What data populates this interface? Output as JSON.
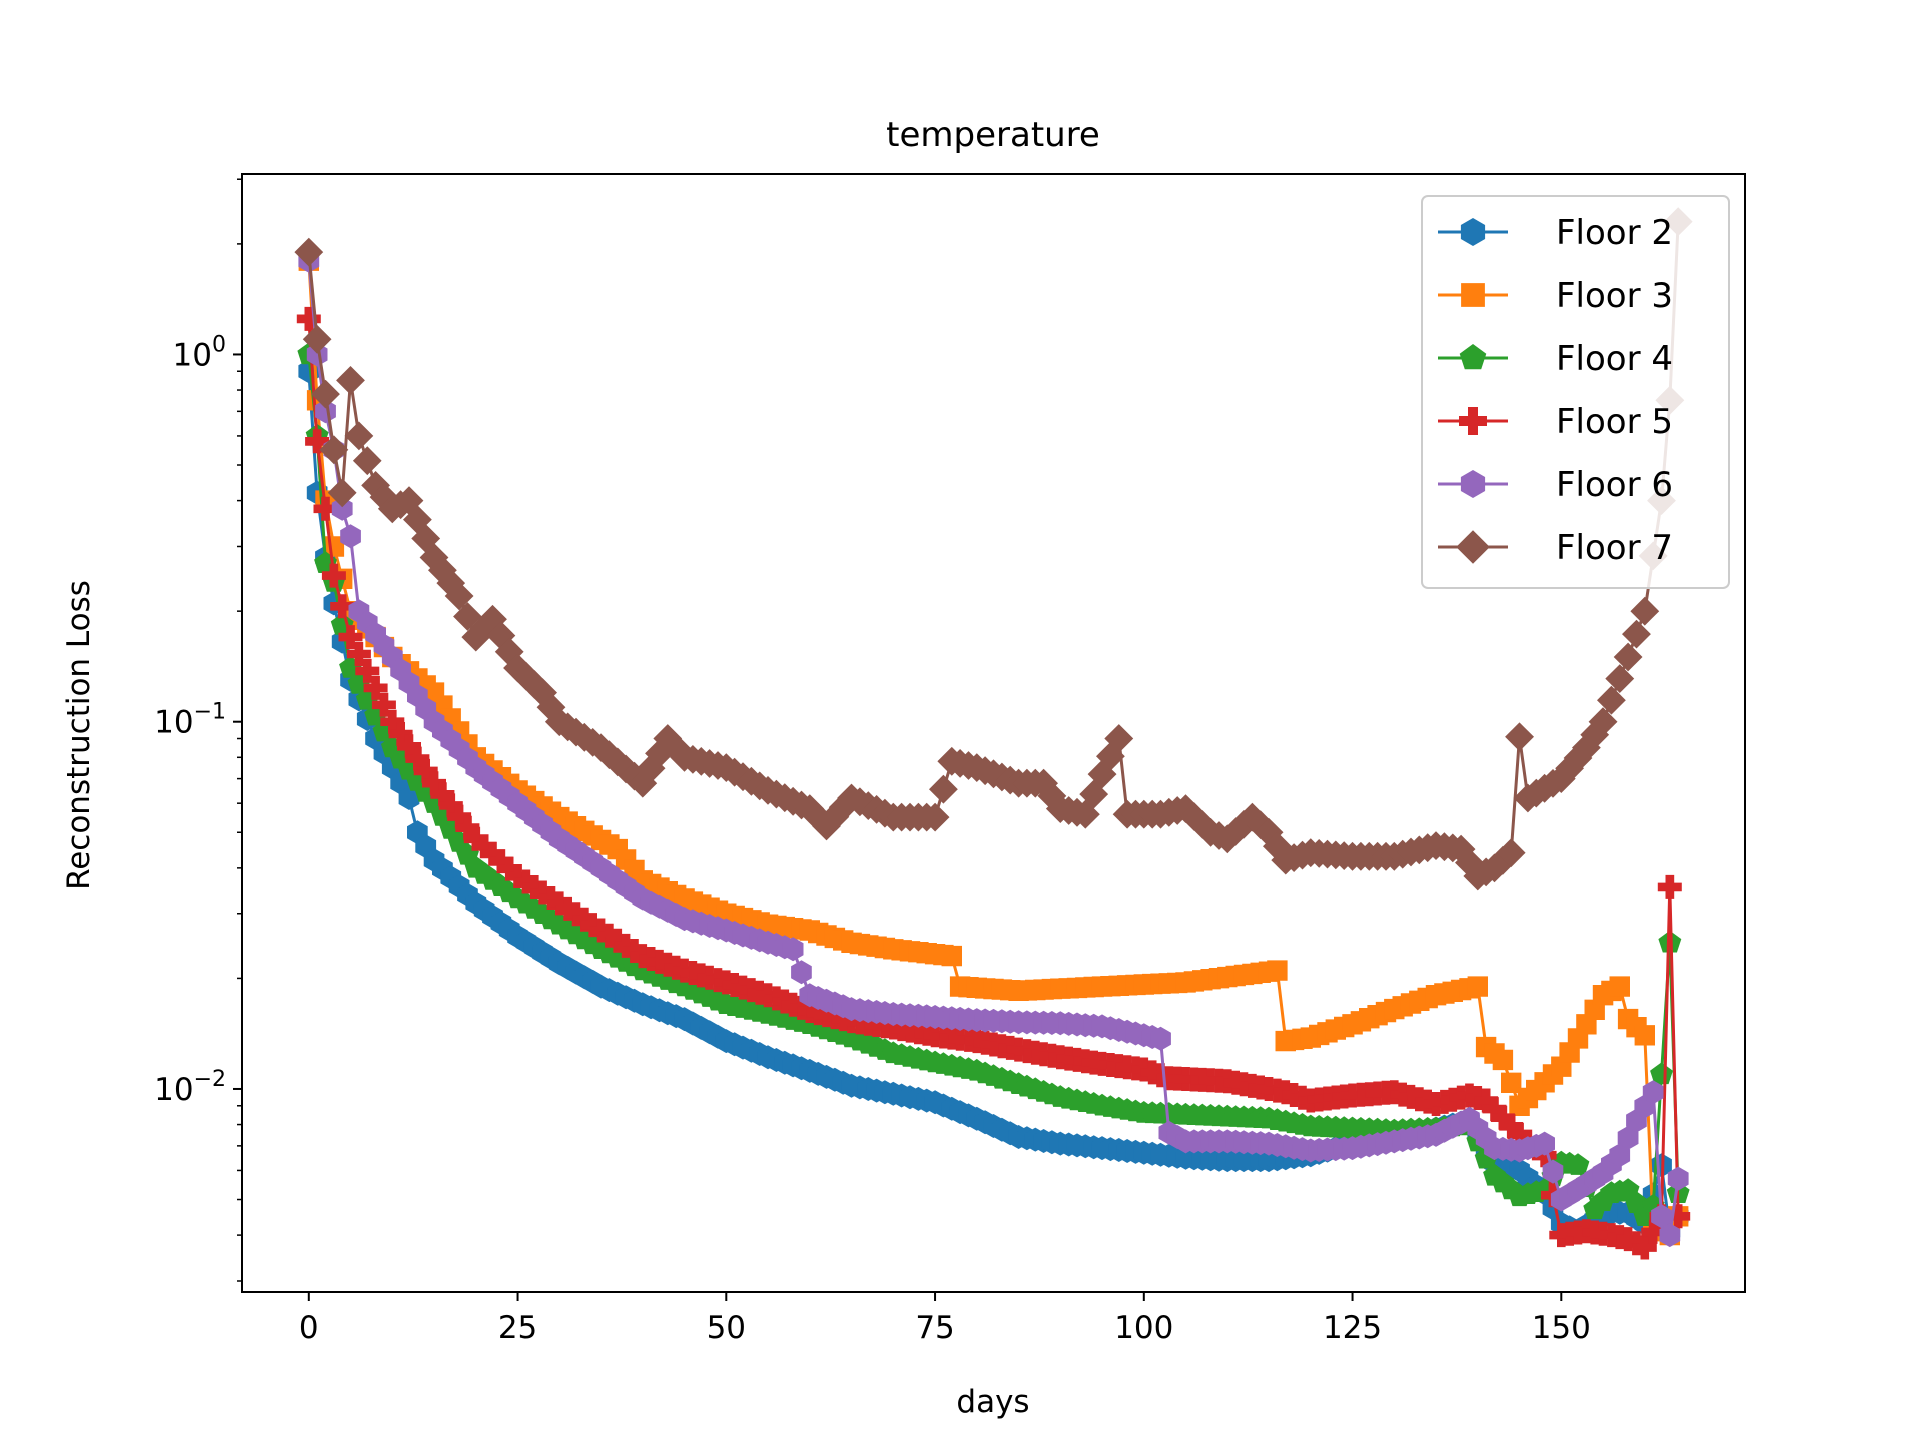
{
  "chart_data": {
    "type": "line",
    "title": "temperature",
    "xlabel": "days",
    "ylabel": "Reconstruction Loss",
    "xlim": [
      -8,
      172
    ],
    "ylim": [
      0.0028,
      3.1
    ],
    "yscale": "log",
    "xticks": [
      0,
      25,
      50,
      75,
      100,
      125,
      150
    ],
    "xtick_labels": [
      "0",
      "25",
      "50",
      "75",
      "100",
      "125",
      "150"
    ],
    "yticks": [
      0.01,
      0.1,
      1
    ],
    "ytick_labels": [
      {
        "base": "10",
        "exp": "−2"
      },
      {
        "base": "10",
        "exp": "−1"
      },
      {
        "base": "10",
        "exp": "0"
      }
    ],
    "grid": false,
    "legend_position": "top-right",
    "series": [
      {
        "name": "Floor 2",
        "color": "#1f77b4",
        "marker": "hexagon",
        "keypoints": [
          [
            0,
            0.9
          ],
          [
            1,
            0.42
          ],
          [
            2,
            0.28
          ],
          [
            3,
            0.21
          ],
          [
            5,
            0.13
          ],
          [
            8,
            0.09
          ],
          [
            10,
            0.075
          ],
          [
            12,
            0.062
          ],
          [
            13,
            0.05
          ],
          [
            15,
            0.042
          ],
          [
            20,
            0.032
          ],
          [
            25,
            0.026
          ],
          [
            30,
            0.022
          ],
          [
            35,
            0.019
          ],
          [
            40,
            0.017
          ],
          [
            45,
            0.0155
          ],
          [
            50,
            0.0135
          ],
          [
            55,
            0.0122
          ],
          [
            60,
            0.0112
          ],
          [
            65,
            0.0102
          ],
          [
            70,
            0.0097
          ],
          [
            75,
            0.0092
          ],
          [
            80,
            0.0083
          ],
          [
            85,
            0.0074
          ],
          [
            90,
            0.0071
          ],
          [
            95,
            0.0069
          ],
          [
            100,
            0.0067
          ],
          [
            105,
            0.0065
          ],
          [
            110,
            0.0064
          ],
          [
            115,
            0.0064
          ],
          [
            120,
            0.0066
          ],
          [
            125,
            0.0071
          ],
          [
            130,
            0.0074
          ],
          [
            135,
            0.0078
          ],
          [
            139,
            0.0082
          ],
          [
            142,
            0.0063
          ],
          [
            145,
            0.006
          ],
          [
            148,
            0.0052
          ],
          [
            150,
            0.0043
          ],
          [
            152,
            0.0041
          ],
          [
            154,
            0.0044
          ],
          [
            156,
            0.0046
          ],
          [
            158,
            0.0046
          ],
          [
            160,
            0.0043
          ],
          [
            162,
            0.0062
          ],
          [
            163,
            0.0041
          ],
          [
            164,
            0.0045
          ]
        ]
      },
      {
        "name": "Floor 3",
        "color": "#ff7f0e",
        "marker": "square",
        "keypoints": [
          [
            0,
            1.8
          ],
          [
            1,
            0.75
          ],
          [
            2,
            0.4
          ],
          [
            3,
            0.3
          ],
          [
            5,
            0.2
          ],
          [
            8,
            0.17
          ],
          [
            10,
            0.15
          ],
          [
            15,
            0.12
          ],
          [
            20,
            0.08
          ],
          [
            25,
            0.065
          ],
          [
            30,
            0.055
          ],
          [
            37,
            0.045
          ],
          [
            40,
            0.037
          ],
          [
            45,
            0.033
          ],
          [
            50,
            0.03
          ],
          [
            55,
            0.028
          ],
          [
            60,
            0.027
          ],
          [
            65,
            0.025
          ],
          [
            70,
            0.024
          ],
          [
            77,
            0.023
          ],
          [
            78,
            0.019
          ],
          [
            85,
            0.0185
          ],
          [
            95,
            0.019
          ],
          [
            105,
            0.0195
          ],
          [
            116,
            0.021
          ],
          [
            117,
            0.0135
          ],
          [
            120,
            0.0138
          ],
          [
            125,
            0.015
          ],
          [
            130,
            0.0165
          ],
          [
            135,
            0.018
          ],
          [
            140,
            0.019
          ],
          [
            141,
            0.013
          ],
          [
            143,
            0.012
          ],
          [
            145,
            0.009
          ],
          [
            150,
            0.0115
          ],
          [
            153,
            0.015
          ],
          [
            155,
            0.018
          ],
          [
            157,
            0.019
          ],
          [
            158,
            0.0155
          ],
          [
            160,
            0.014
          ],
          [
            161,
            0.0042
          ],
          [
            163,
            0.004
          ],
          [
            164,
            0.0045
          ]
        ]
      },
      {
        "name": "Floor 4",
        "color": "#2ca02c",
        "marker": "pentagon",
        "keypoints": [
          [
            0,
            1.0
          ],
          [
            1,
            0.6
          ],
          [
            2,
            0.27
          ],
          [
            3,
            0.24
          ],
          [
            5,
            0.14
          ],
          [
            10,
            0.085
          ],
          [
            15,
            0.06
          ],
          [
            20,
            0.04
          ],
          [
            25,
            0.033
          ],
          [
            30,
            0.028
          ],
          [
            35,
            0.024
          ],
          [
            40,
            0.021
          ],
          [
            45,
            0.019
          ],
          [
            50,
            0.017
          ],
          [
            55,
            0.016
          ],
          [
            60,
            0.015
          ],
          [
            65,
            0.0138
          ],
          [
            70,
            0.0125
          ],
          [
            75,
            0.0118
          ],
          [
            80,
            0.0112
          ],
          [
            85,
            0.0103
          ],
          [
            90,
            0.0095
          ],
          [
            95,
            0.009
          ],
          [
            100,
            0.0086
          ],
          [
            105,
            0.0085
          ],
          [
            110,
            0.0084
          ],
          [
            115,
            0.0083
          ],
          [
            120,
            0.0079
          ],
          [
            125,
            0.0078
          ],
          [
            130,
            0.0077
          ],
          [
            135,
            0.0078
          ],
          [
            139,
            0.008
          ],
          [
            142,
            0.0058
          ],
          [
            145,
            0.0051
          ],
          [
            148,
            0.0053
          ],
          [
            150,
            0.0063
          ],
          [
            152,
            0.0062
          ],
          [
            154,
            0.0047
          ],
          [
            156,
            0.0052
          ],
          [
            158,
            0.0053
          ],
          [
            160,
            0.0045
          ],
          [
            161,
            0.0048
          ],
          [
            163,
            0.025
          ],
          [
            164,
            0.0052
          ]
        ]
      },
      {
        "name": "Floor 5",
        "color": "#d62728",
        "marker": "plus",
        "keypoints": [
          [
            0,
            1.25
          ],
          [
            1,
            0.58
          ],
          [
            2,
            0.38
          ],
          [
            3,
            0.25
          ],
          [
            5,
            0.17
          ],
          [
            10,
            0.1
          ],
          [
            15,
            0.068
          ],
          [
            20,
            0.048
          ],
          [
            25,
            0.038
          ],
          [
            30,
            0.032
          ],
          [
            35,
            0.027
          ],
          [
            40,
            0.023
          ],
          [
            45,
            0.021
          ],
          [
            50,
            0.0195
          ],
          [
            55,
            0.018
          ],
          [
            60,
            0.0163
          ],
          [
            65,
            0.0153
          ],
          [
            70,
            0.0147
          ],
          [
            75,
            0.014
          ],
          [
            80,
            0.0135
          ],
          [
            85,
            0.0128
          ],
          [
            90,
            0.0122
          ],
          [
            95,
            0.0117
          ],
          [
            100,
            0.0113
          ],
          [
            103,
            0.0107
          ],
          [
            110,
            0.0105
          ],
          [
            117,
            0.0098
          ],
          [
            120,
            0.0093
          ],
          [
            125,
            0.0096
          ],
          [
            130,
            0.0098
          ],
          [
            135,
            0.0091
          ],
          [
            139,
            0.0096
          ],
          [
            141,
            0.0093
          ],
          [
            145,
            0.0075
          ],
          [
            148,
            0.0066
          ],
          [
            150,
            0.004
          ],
          [
            153,
            0.0041
          ],
          [
            156,
            0.004
          ],
          [
            158,
            0.0039
          ],
          [
            160,
            0.0037
          ],
          [
            162,
            0.0045
          ],
          [
            163,
            0.0355
          ],
          [
            164,
            0.0045
          ]
        ]
      },
      {
        "name": "Floor 6",
        "color": "#9467bd",
        "marker": "hexagon",
        "keypoints": [
          [
            0,
            1.8
          ],
          [
            1,
            1.0
          ],
          [
            2,
            0.7
          ],
          [
            3,
            0.55
          ],
          [
            4,
            0.38
          ],
          [
            5,
            0.32
          ],
          [
            6,
            0.2
          ],
          [
            10,
            0.15
          ],
          [
            15,
            0.1
          ],
          [
            20,
            0.075
          ],
          [
            25,
            0.06
          ],
          [
            30,
            0.048
          ],
          [
            35,
            0.04
          ],
          [
            40,
            0.033
          ],
          [
            45,
            0.029
          ],
          [
            50,
            0.027
          ],
          [
            55,
            0.025
          ],
          [
            58,
            0.024
          ],
          [
            60,
            0.018
          ],
          [
            65,
            0.0165
          ],
          [
            70,
            0.016
          ],
          [
            75,
            0.0157
          ],
          [
            80,
            0.0154
          ],
          [
            85,
            0.0152
          ],
          [
            90,
            0.0151
          ],
          [
            95,
            0.0148
          ],
          [
            100,
            0.014
          ],
          [
            102,
            0.0137
          ],
          [
            103,
            0.0076
          ],
          [
            105,
            0.0072
          ],
          [
            110,
            0.0072
          ],
          [
            115,
            0.0071
          ],
          [
            120,
            0.0068
          ],
          [
            125,
            0.0069
          ],
          [
            130,
            0.0072
          ],
          [
            135,
            0.0075
          ],
          [
            139,
            0.0083
          ],
          [
            142,
            0.0069
          ],
          [
            145,
            0.0068
          ],
          [
            148,
            0.0071
          ],
          [
            150,
            0.005
          ],
          [
            153,
            0.0055
          ],
          [
            155,
            0.0059
          ],
          [
            157,
            0.0066
          ],
          [
            159,
            0.0082
          ],
          [
            161,
            0.0098
          ],
          [
            162,
            0.0045
          ],
          [
            163,
            0.004
          ],
          [
            164,
            0.0057
          ]
        ]
      },
      {
        "name": "Floor 7",
        "color": "#8c564b",
        "marker": "diamond",
        "keypoints": [
          [
            0,
            1.9
          ],
          [
            1,
            1.1
          ],
          [
            2,
            0.78
          ],
          [
            3,
            0.55
          ],
          [
            4,
            0.42
          ],
          [
            5,
            0.85
          ],
          [
            6,
            0.6
          ],
          [
            8,
            0.44
          ],
          [
            10,
            0.38
          ],
          [
            12,
            0.4
          ],
          [
            15,
            0.28
          ],
          [
            18,
            0.22
          ],
          [
            20,
            0.17
          ],
          [
            22,
            0.19
          ],
          [
            25,
            0.14
          ],
          [
            28,
            0.12
          ],
          [
            30,
            0.1
          ],
          [
            35,
            0.085
          ],
          [
            40,
            0.068
          ],
          [
            43,
            0.09
          ],
          [
            45,
            0.08
          ],
          [
            50,
            0.075
          ],
          [
            55,
            0.065
          ],
          [
            60,
            0.058
          ],
          [
            62,
            0.052
          ],
          [
            65,
            0.062
          ],
          [
            70,
            0.055
          ],
          [
            75,
            0.055
          ],
          [
            77,
            0.078
          ],
          [
            80,
            0.075
          ],
          [
            85,
            0.068
          ],
          [
            88,
            0.068
          ],
          [
            90,
            0.058
          ],
          [
            93,
            0.056
          ],
          [
            95,
            0.072
          ],
          [
            97,
            0.09
          ],
          [
            98,
            0.056
          ],
          [
            102,
            0.056
          ],
          [
            105,
            0.058
          ],
          [
            108,
            0.05
          ],
          [
            110,
            0.048
          ],
          [
            113,
            0.055
          ],
          [
            115,
            0.05
          ],
          [
            117,
            0.042
          ],
          [
            120,
            0.044
          ],
          [
            125,
            0.043
          ],
          [
            130,
            0.043
          ],
          [
            135,
            0.046
          ],
          [
            138,
            0.045
          ],
          [
            140,
            0.038
          ],
          [
            142,
            0.04
          ],
          [
            144,
            0.044
          ],
          [
            145,
            0.091
          ],
          [
            146,
            0.062
          ],
          [
            150,
            0.07
          ],
          [
            153,
            0.085
          ],
          [
            155,
            0.1
          ],
          [
            158,
            0.15
          ],
          [
            160,
            0.2
          ],
          [
            162,
            0.4
          ],
          [
            163,
            0.75
          ],
          [
            164,
            2.3
          ]
        ]
      }
    ]
  }
}
